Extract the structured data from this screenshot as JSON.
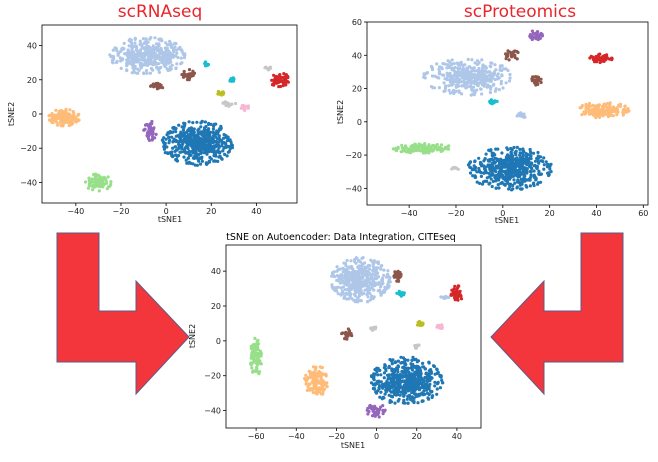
{
  "colors": {
    "lightblue": "#aec7e8",
    "blue": "#1f77b4",
    "orange": "#ffbb78",
    "green": "#98df8a",
    "red": "#d62728",
    "brown": "#8c564b",
    "purple": "#9467bd",
    "pink": "#f7b6d2",
    "cyan": "#17becf",
    "olive": "#bcbd22",
    "gray": "#c7c7c7",
    "arrow_fill": "#f2363c",
    "arrow_stroke": "#5b5b8a"
  },
  "arrows": [
    {
      "name": "left-arrow",
      "direction": "right"
    },
    {
      "name": "right-arrow",
      "direction": "left"
    }
  ],
  "chart_data": [
    {
      "type": "scatter",
      "id": "scrna",
      "title": "scRNAseq",
      "xlabel": "tSNE1",
      "ylabel": "tSNE2",
      "xlim": [
        -55,
        58
      ],
      "ylim": [
        -52,
        52
      ],
      "xticks": [
        -40,
        -20,
        0,
        20,
        40
      ],
      "yticks": [
        -40,
        -20,
        0,
        20,
        40
      ],
      "clusters": [
        {
          "color": "lightblue",
          "cx": -8,
          "cy": 34,
          "rx": 17,
          "ry": 11,
          "n": 420
        },
        {
          "color": "blue",
          "cx": 14,
          "cy": -17,
          "rx": 16,
          "ry": 13,
          "n": 520
        },
        {
          "color": "purple",
          "cx": -7,
          "cy": -10,
          "rx": 3,
          "ry": 6,
          "n": 40
        },
        {
          "color": "orange",
          "cx": -45,
          "cy": -2,
          "rx": 7,
          "ry": 5,
          "n": 130
        },
        {
          "color": "green",
          "cx": -30,
          "cy": -40,
          "rx": 6,
          "ry": 5,
          "n": 80
        },
        {
          "color": "red",
          "cx": 50,
          "cy": 20,
          "rx": 5,
          "ry": 4,
          "n": 60
        },
        {
          "color": "brown",
          "cx": 10,
          "cy": 23,
          "rx": 3,
          "ry": 3,
          "n": 30
        },
        {
          "color": "brown",
          "cx": -4,
          "cy": 16,
          "rx": 3,
          "ry": 2,
          "n": 25
        },
        {
          "color": "cyan",
          "cx": 18,
          "cy": 29,
          "rx": 1.5,
          "ry": 1.5,
          "n": 12
        },
        {
          "color": "olive",
          "cx": 24,
          "cy": 12,
          "rx": 2,
          "ry": 1.5,
          "n": 14
        },
        {
          "color": "pink",
          "cx": 35,
          "cy": 4,
          "rx": 2,
          "ry": 2,
          "n": 16
        },
        {
          "color": "gray",
          "cx": 28,
          "cy": 6,
          "rx": 3,
          "ry": 1.5,
          "n": 16
        },
        {
          "color": "cyan",
          "cx": 29,
          "cy": 20,
          "rx": 1.5,
          "ry": 1.5,
          "n": 12
        },
        {
          "color": "gray",
          "cx": 45,
          "cy": 27,
          "rx": 1.5,
          "ry": 1.5,
          "n": 10
        }
      ]
    },
    {
      "type": "scatter",
      "id": "scprot",
      "title": "scProteomics",
      "xlabel": "tSNE1",
      "ylabel": "tSNE2",
      "xlim": [
        -58,
        62
      ],
      "ylim": [
        -50,
        60
      ],
      "xticks": [
        -40,
        -20,
        0,
        20,
        40,
        60
      ],
      "yticks": [
        -40,
        -20,
        0,
        20,
        40,
        60
      ],
      "clusters": [
        {
          "color": "lightblue",
          "cx": -15,
          "cy": 27,
          "rx": 19,
          "ry": 11,
          "n": 380
        },
        {
          "color": "blue",
          "cx": 3,
          "cy": -28,
          "rx": 18,
          "ry": 13,
          "n": 520
        },
        {
          "color": "orange",
          "cx": 43,
          "cy": 7,
          "rx": 11,
          "ry": 5,
          "n": 150
        },
        {
          "color": "green",
          "cx": -34,
          "cy": -16,
          "rx": 13,
          "ry": 3,
          "n": 130
        },
        {
          "color": "red",
          "cx": 42,
          "cy": 38,
          "rx": 5,
          "ry": 3,
          "n": 50
        },
        {
          "color": "brown",
          "cx": 4,
          "cy": 40,
          "rx": 4,
          "ry": 3,
          "n": 30
        },
        {
          "color": "brown",
          "cx": 14,
          "cy": 25,
          "rx": 3,
          "ry": 3,
          "n": 30
        },
        {
          "color": "purple",
          "cx": 14,
          "cy": 52,
          "rx": 3,
          "ry": 3,
          "n": 35
        },
        {
          "color": "lightblue",
          "cx": 8,
          "cy": 4,
          "rx": 2,
          "ry": 2,
          "n": 20
        },
        {
          "color": "cyan",
          "cx": -4,
          "cy": 12,
          "rx": 2,
          "ry": 1.5,
          "n": 12
        },
        {
          "color": "gray",
          "cx": -20,
          "cy": -28,
          "rx": 2,
          "ry": 1,
          "n": 8
        }
      ]
    },
    {
      "type": "scatter",
      "id": "integrated",
      "title": "tSNE on Autoencoder: Data Integration, CITEseq",
      "xlabel": "tSNE1",
      "ylabel": "tSNE2",
      "xlim": [
        -75,
        52
      ],
      "ylim": [
        -50,
        55
      ],
      "xticks": [
        -60,
        -40,
        -20,
        0,
        20,
        40
      ],
      "yticks": [
        -40,
        -20,
        0,
        20,
        40
      ],
      "clusters": [
        {
          "color": "lightblue",
          "cx": -8,
          "cy": 35,
          "rx": 15,
          "ry": 13,
          "n": 400
        },
        {
          "color": "blue",
          "cx": 15,
          "cy": -23,
          "rx": 18,
          "ry": 14,
          "n": 540
        },
        {
          "color": "purple",
          "cx": 0,
          "cy": -40,
          "rx": 5,
          "ry": 4,
          "n": 45
        },
        {
          "color": "orange",
          "cx": -30,
          "cy": -23,
          "rx": 6,
          "ry": 9,
          "n": 130
        },
        {
          "color": "green",
          "cx": -60,
          "cy": -9,
          "rx": 3,
          "ry": 11,
          "n": 90
        },
        {
          "color": "red",
          "cx": 40,
          "cy": 27,
          "rx": 3,
          "ry": 5,
          "n": 50
        },
        {
          "color": "brown",
          "cx": 10,
          "cy": 37,
          "rx": 3,
          "ry": 3,
          "n": 30
        },
        {
          "color": "brown",
          "cx": -15,
          "cy": 4,
          "rx": 3,
          "ry": 3,
          "n": 25
        },
        {
          "color": "cyan",
          "cx": 12,
          "cy": 27,
          "rx": 2,
          "ry": 1.5,
          "n": 14
        },
        {
          "color": "olive",
          "cx": 22,
          "cy": 10,
          "rx": 2,
          "ry": 1.5,
          "n": 14
        },
        {
          "color": "pink",
          "cx": 32,
          "cy": 8,
          "rx": 2,
          "ry": 1.5,
          "n": 14
        },
        {
          "color": "gray",
          "cx": -2,
          "cy": 7,
          "rx": 2,
          "ry": 1.5,
          "n": 12
        },
        {
          "color": "gray",
          "cx": 20,
          "cy": -3,
          "rx": 1.5,
          "ry": 1.5,
          "n": 10
        },
        {
          "color": "lightblue",
          "cx": 34,
          "cy": 25,
          "rx": 2,
          "ry": 1.5,
          "n": 12
        }
      ]
    }
  ]
}
